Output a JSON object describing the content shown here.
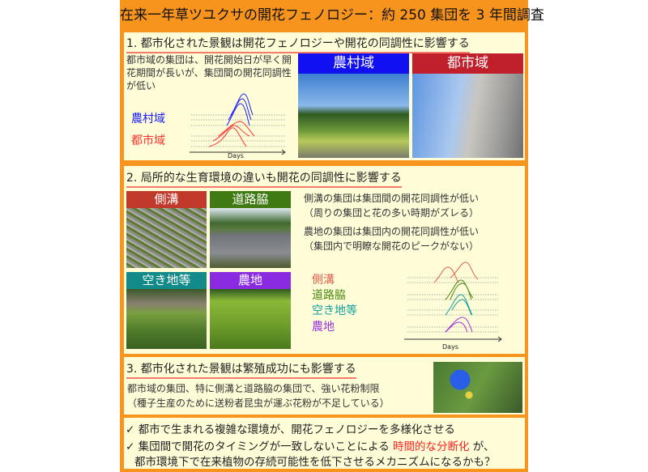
{
  "title": "在来一年草ツユクサの開花フェノロジー：約 250 集団を 3 年間調査",
  "s1": {
    "heading": "1. 都市化された景観は開花フェノロジーや開花の同調性に影響する",
    "text": [
      "都市域の集団は、開花開始日が早く開",
      "花期間が長いが、集団間の開花同調性",
      "が低い"
    ],
    "labels": [
      "農村域",
      "都市域"
    ],
    "axis": "Days",
    "photos": [
      {
        "label": "農村域",
        "color": "#1010f0"
      },
      {
        "label": "都市域",
        "color": "#c0202c"
      }
    ]
  },
  "s2": {
    "heading": "2. 局所的な生育環境の違いも開花の同調性に影響する",
    "photos": [
      {
        "label": "側溝",
        "color": "#c0392b"
      },
      {
        "label": "道路脇",
        "color": "#3f7a12"
      },
      {
        "label": "空き地等",
        "color": "#138a8a"
      },
      {
        "label": "農地",
        "color": "#8a2be2"
      }
    ],
    "text": [
      "側溝の集団は集団間の開花同調性が低い",
      "（周りの集団と花の多い時期がズレる）",
      "農地の集団は集団内の開花同調性が低い",
      "（集団内で明瞭な開花のピークがない）"
    ],
    "labels": [
      {
        "label": "側溝",
        "color": "#e06050"
      },
      {
        "label": "道路脇",
        "color": "#4a8a10"
      },
      {
        "label": "空き地等",
        "color": "#10a0a0"
      },
      {
        "label": "農地",
        "color": "#9a30e0"
      }
    ],
    "axis": "Days"
  },
  "s3": {
    "heading": "3. 都市化された景観は繁殖成功にも影響する",
    "text": [
      "都市域の集団、特に側溝と道路脇の集団で、強い花粉制限",
      "（種子生産のために送粉者昆虫が運ぶ花粉が不足している）"
    ]
  },
  "summary": {
    "check": "✓",
    "line1": "都市で生まれる複雑な環境が、開花フェノロジーを多様化させる",
    "line2a": "集団間で開花のタイミングが一致しないことによる ",
    "line2hl": "時間的な分断化",
    "line2b": " が、",
    "line3": "都市環境下で在来植物の存続可能性を低下させるメカニズムになるかも？"
  },
  "colors": {
    "frame": "#f7941d",
    "box": "#fffdd8",
    "highlight": "#ff2020"
  }
}
